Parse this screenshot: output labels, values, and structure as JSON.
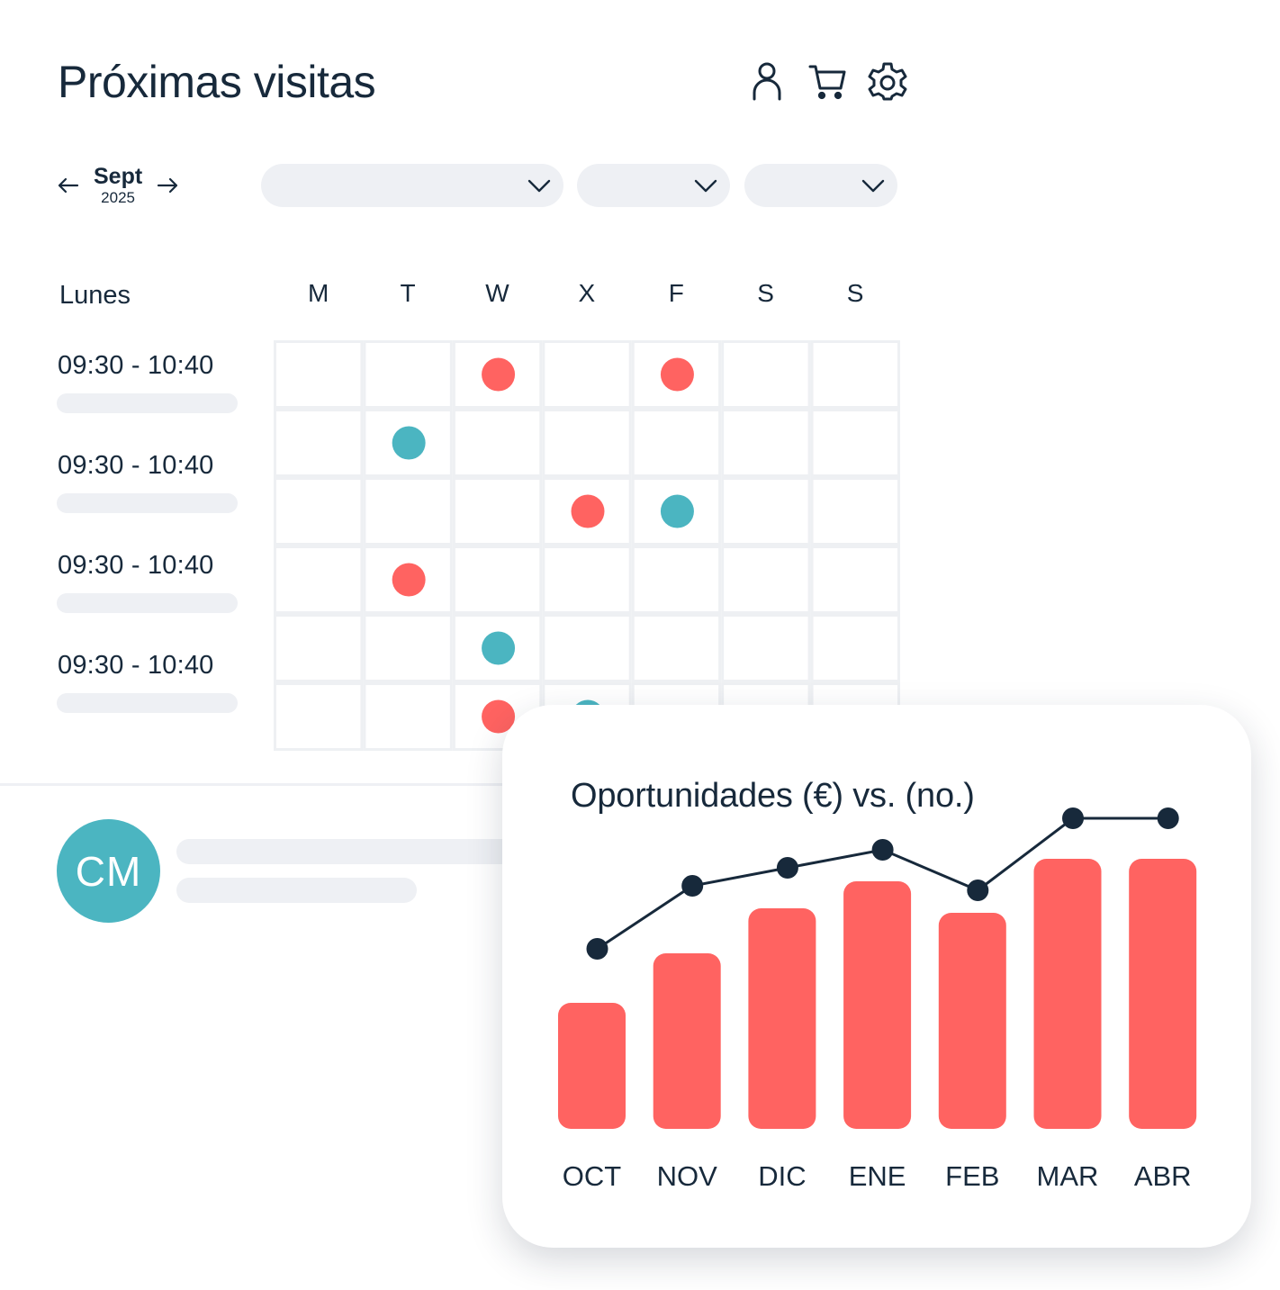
{
  "header": {
    "title": "Próximas visitas",
    "icons": [
      "user-icon",
      "cart-icon",
      "settings-icon"
    ]
  },
  "month_nav": {
    "month": "Sept",
    "year": "2025"
  },
  "filters": [
    {
      "value": ""
    },
    {
      "value": ""
    },
    {
      "value": ""
    }
  ],
  "schedule": {
    "day_label": "Lunes",
    "weekdays": [
      "M",
      "T",
      "W",
      "X",
      "F",
      "S",
      "S"
    ],
    "slots": [
      "09:30 - 10:40",
      "09:30 - 10:40",
      "09:30 - 10:40",
      "09:30 - 10:40"
    ],
    "rows": 6,
    "colors": {
      "red": "#ff6361",
      "teal": "#4bb5c1"
    },
    "events": [
      {
        "row": 0,
        "col": 2,
        "color": "red"
      },
      {
        "row": 0,
        "col": 4,
        "color": "red"
      },
      {
        "row": 1,
        "col": 1,
        "color": "teal"
      },
      {
        "row": 2,
        "col": 3,
        "color": "red"
      },
      {
        "row": 2,
        "col": 4,
        "color": "teal"
      },
      {
        "row": 3,
        "col": 1,
        "color": "red"
      },
      {
        "row": 4,
        "col": 2,
        "color": "teal"
      },
      {
        "row": 5,
        "col": 2,
        "color": "red"
      },
      {
        "row": 5,
        "col": 3,
        "color": "teal"
      }
    ]
  },
  "contact": {
    "initials": "CM",
    "avatar_color": "#4bb5c1"
  },
  "chart_data": {
    "type": "bar",
    "title": "Oportunidades (€) vs. (no.)",
    "categories": [
      "OCT",
      "NOV",
      "DIC",
      "ENE",
      "FEB",
      "MAR",
      "ABR"
    ],
    "series": [
      {
        "type": "bar",
        "values": [
          28,
          39,
          49,
          55,
          48,
          60,
          60
        ],
        "color": "#ff6361"
      },
      {
        "type": "line",
        "values": [
          40,
          54,
          58,
          62,
          53,
          69,
          69
        ],
        "color": "#17293b"
      }
    ],
    "ylim": [
      0,
      80
    ],
    "grid": false,
    "legend": "none"
  }
}
